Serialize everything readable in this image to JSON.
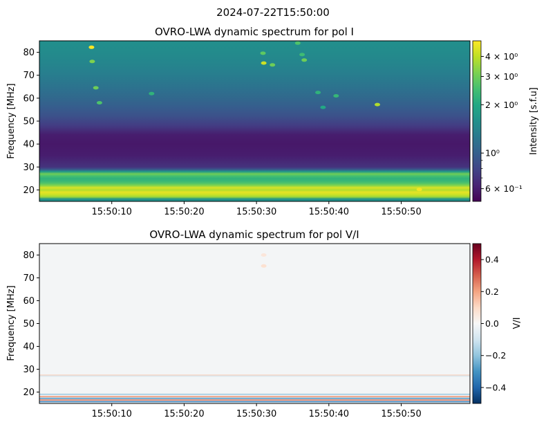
{
  "figure": {
    "suptitle": "2024-07-22T15:50:00"
  },
  "chart_data": [
    {
      "type": "heatmap",
      "title": "OVRO-LWA dynamic spectrum for pol I",
      "ylabel": "Frequency [MHz]",
      "xlabel": "",
      "xticks": [
        "15:50:10",
        "15:50:20",
        "15:50:30",
        "15:50:40",
        "15:50:50"
      ],
      "xtick_seconds": [
        10,
        20,
        30,
        40,
        50
      ],
      "xlim_seconds": [
        0,
        59.5
      ],
      "yticks": [
        20,
        30,
        40,
        50,
        60,
        70,
        80
      ],
      "ylim": [
        15,
        85
      ],
      "colormap": "viridis",
      "colorbar": {
        "label": "Intensity [s.f.u]",
        "scale": "log",
        "range": [
          0.5,
          5.0
        ],
        "ticks": [
          {
            "value": 0.6,
            "label": "6 × 10⁻¹"
          },
          {
            "value": 1.0,
            "label": "10⁰"
          },
          {
            "value": 2.0,
            "label": "2 × 10⁰"
          },
          {
            "value": 3.0,
            "label": "3 × 10⁰"
          },
          {
            "value": 4.0,
            "label": "4 × 10⁰"
          }
        ],
        "minor_ticks": [
          0.7,
          0.8,
          0.9
        ]
      },
      "frequency_profile": [
        {
          "f": 16,
          "v": 1.6
        },
        {
          "f": 17,
          "v": 3.6
        },
        {
          "f": 18,
          "v": 4.2
        },
        {
          "f": 19,
          "v": 4.6
        },
        {
          "f": 20,
          "v": 3.8
        },
        {
          "f": 21,
          "v": 4.4
        },
        {
          "f": 22,
          "v": 3.2
        },
        {
          "f": 23,
          "v": 2.6
        },
        {
          "f": 24,
          "v": 2.3
        },
        {
          "f": 25,
          "v": 2.2
        },
        {
          "f": 26,
          "v": 2.5
        },
        {
          "f": 27,
          "v": 3.0
        },
        {
          "f": 28,
          "v": 1.7
        },
        {
          "f": 29,
          "v": 0.9
        },
        {
          "f": 30,
          "v": 0.7
        },
        {
          "f": 35,
          "v": 0.6
        },
        {
          "f": 40,
          "v": 0.58
        },
        {
          "f": 44,
          "v": 0.6
        },
        {
          "f": 48,
          "v": 0.75
        },
        {
          "f": 52,
          "v": 0.88
        },
        {
          "f": 56,
          "v": 0.98
        },
        {
          "f": 60,
          "v": 1.08
        },
        {
          "f": 65,
          "v": 1.2
        },
        {
          "f": 70,
          "v": 1.32
        },
        {
          "f": 75,
          "v": 1.42
        },
        {
          "f": 80,
          "v": 1.5
        },
        {
          "f": 85,
          "v": 1.55
        }
      ],
      "bursts": [
        {
          "t": 7.2,
          "f": 82.2,
          "v": 5.0
        },
        {
          "t": 7.3,
          "f": 76.0,
          "v": 3.2
        },
        {
          "t": 7.8,
          "f": 64.5,
          "v": 3.0
        },
        {
          "t": 8.3,
          "f": 58.0,
          "v": 2.6
        },
        {
          "t": 15.5,
          "f": 62.0,
          "v": 2.2
        },
        {
          "t": 30.9,
          "f": 79.6,
          "v": 2.8
        },
        {
          "t": 31.0,
          "f": 75.3,
          "v": 4.2
        },
        {
          "t": 32.2,
          "f": 74.5,
          "v": 3.0
        },
        {
          "t": 35.7,
          "f": 84.0,
          "v": 2.6
        },
        {
          "t": 36.3,
          "f": 79.0,
          "v": 2.4
        },
        {
          "t": 36.6,
          "f": 76.6,
          "v": 3.0
        },
        {
          "t": 38.5,
          "f": 62.5,
          "v": 2.2
        },
        {
          "t": 39.2,
          "f": 56.0,
          "v": 2.0
        },
        {
          "t": 41.0,
          "f": 61.0,
          "v": 2.3
        },
        {
          "t": 46.7,
          "f": 57.2,
          "v": 3.8
        },
        {
          "t": 52.5,
          "f": 20.2,
          "v": 4.8
        }
      ]
    },
    {
      "type": "heatmap",
      "title": "OVRO-LWA dynamic spectrum for pol V/I",
      "ylabel": "Frequency [MHz]",
      "xlabel": "",
      "xticks": [
        "15:50:10",
        "15:50:20",
        "15:50:30",
        "15:50:40",
        "15:50:50"
      ],
      "xtick_seconds": [
        10,
        20,
        30,
        40,
        50
      ],
      "xlim_seconds": [
        0,
        59.5
      ],
      "yticks": [
        20,
        30,
        40,
        50,
        60,
        70,
        80
      ],
      "ylim": [
        15,
        85
      ],
      "colormap": "RdBu_r",
      "colorbar": {
        "label": "V/I",
        "scale": "linear",
        "range": [
          -0.5,
          0.5
        ],
        "ticks": [
          {
            "value": 0.4,
            "label": "0.4"
          },
          {
            "value": 0.2,
            "label": "0.2"
          },
          {
            "value": 0.0,
            "label": "0.0"
          },
          {
            "value": -0.2,
            "label": "−0.2"
          },
          {
            "value": -0.4,
            "label": "−0.4"
          }
        ]
      },
      "background_value": -0.01,
      "bands": [
        {
          "f": 27.3,
          "v": 0.14
        },
        {
          "f": 27.0,
          "v": -0.08
        },
        {
          "f": 19.0,
          "v": -0.18
        },
        {
          "f": 18.0,
          "v": 0.22
        },
        {
          "f": 17.2,
          "v": -0.3
        },
        {
          "f": 16.5,
          "v": 0.25
        },
        {
          "f": 15.8,
          "v": -0.35
        }
      ],
      "bursts": [
        {
          "t": 31.0,
          "f": 75.2,
          "v": 0.08
        },
        {
          "t": 31.0,
          "f": 80.0,
          "v": 0.06
        }
      ]
    }
  ]
}
